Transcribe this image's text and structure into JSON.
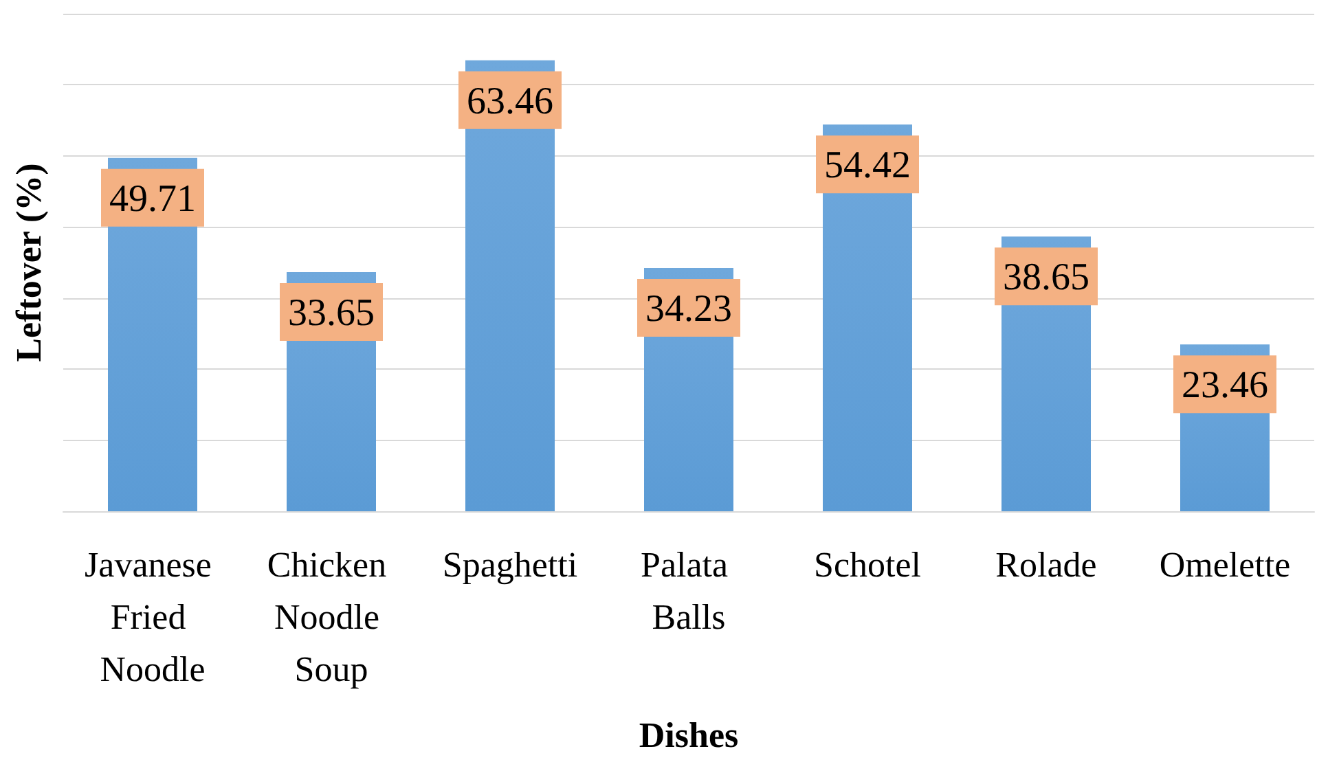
{
  "chart_data": {
    "type": "bar",
    "xlabel": "Dishes",
    "ylabel": "Leftover (%)",
    "categories": [
      "Javanese Fried Noodle",
      "Chicken Noodle Soup",
      "Spaghetti",
      "Palata Balls",
      "Schotel",
      "Rolade",
      "Omelette"
    ],
    "values": [
      49.71,
      33.65,
      63.46,
      34.23,
      54.42,
      38.65,
      23.46
    ],
    "color": "#5b9bd5",
    "data_labels": true,
    "grid": "y",
    "tick_labels": "x",
    "ylim": [
      0,
      70
    ],
    "yticks": [
      {
        "value": 0,
        "label": null
      },
      {
        "value": 10,
        "label": null
      },
      {
        "value": 20,
        "label": null
      },
      {
        "value": 30,
        "label": null
      },
      {
        "value": 40,
        "label": null
      },
      {
        "value": 50,
        "label": null
      },
      {
        "value": 60,
        "label": null
      },
      {
        "value": 70,
        "label": null
      }
    ]
  }
}
